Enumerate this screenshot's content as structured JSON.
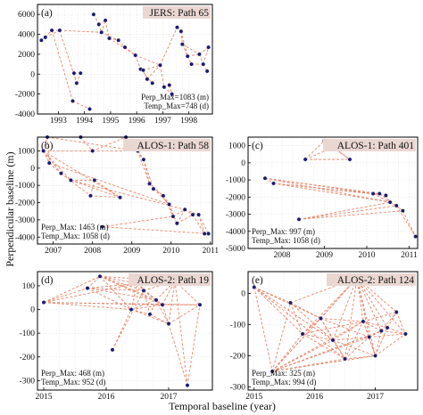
{
  "colors": {
    "point": "#1a1a6e",
    "edge": "#e8866a",
    "title_bg": "#ead7d2",
    "grid": "#dddddd"
  },
  "labels": {
    "y_axis": "Perpendicular baseline (m)",
    "x_axis": "Temporal baseline (year)"
  },
  "chart_data": [
    {
      "id": "a",
      "type": "scatter",
      "panel_label": "(a)",
      "title": "JERS: Path 65",
      "xlim": [
        1992.2,
        1998.9
      ],
      "ylim": [
        -4000,
        7000
      ],
      "xticks": [
        1993,
        1994,
        1995,
        1996,
        1997,
        1998
      ],
      "yticks": [
        -4000,
        -2000,
        0,
        2000,
        4000,
        6000
      ],
      "notes": [
        "Perp_Max=1083 (m)",
        "Temp_Max=748 (d)"
      ],
      "points": [
        [
          1992.35,
          3400
        ],
        [
          1992.5,
          3700
        ],
        [
          1992.75,
          4400
        ],
        [
          1993.05,
          4400
        ],
        [
          1993.55,
          -2700
        ],
        [
          1993.6,
          100
        ],
        [
          1993.7,
          -900
        ],
        [
          1993.85,
          100
        ],
        [
          1994.2,
          -3500
        ],
        [
          1994.35,
          6000
        ],
        [
          1994.55,
          5000
        ],
        [
          1994.65,
          4200
        ],
        [
          1994.8,
          5400
        ],
        [
          1994.95,
          3600
        ],
        [
          1995.3,
          3400
        ],
        [
          1995.55,
          2700
        ],
        [
          1995.95,
          1900
        ],
        [
          1996.15,
          500
        ],
        [
          1996.25,
          400
        ],
        [
          1996.4,
          -500
        ],
        [
          1996.6,
          -900
        ],
        [
          1996.9,
          900
        ],
        [
          1997.05,
          -1300
        ],
        [
          1997.25,
          -1100
        ],
        [
          1997.35,
          -2000
        ],
        [
          1997.55,
          4700
        ],
        [
          1997.7,
          4300
        ],
        [
          1997.75,
          3000
        ],
        [
          1997.95,
          1800
        ],
        [
          1998.1,
          1000
        ],
        [
          1998.4,
          2000
        ],
        [
          1998.55,
          1000
        ],
        [
          1998.7,
          300
        ],
        [
          1998.75,
          2700
        ]
      ],
      "edges": [
        [
          0,
          1
        ],
        [
          1,
          2
        ],
        [
          2,
          3
        ],
        [
          1,
          3
        ],
        [
          2,
          4
        ],
        [
          3,
          6
        ],
        [
          5,
          6
        ],
        [
          5,
          7
        ],
        [
          6,
          7
        ],
        [
          4,
          8
        ],
        [
          3,
          11
        ],
        [
          9,
          10
        ],
        [
          10,
          11
        ],
        [
          11,
          12
        ],
        [
          12,
          13
        ],
        [
          10,
          12
        ],
        [
          11,
          14
        ],
        [
          13,
          14
        ],
        [
          14,
          15
        ],
        [
          15,
          16
        ],
        [
          13,
          16
        ],
        [
          16,
          17
        ],
        [
          17,
          18
        ],
        [
          18,
          19
        ],
        [
          17,
          20
        ],
        [
          19,
          21
        ],
        [
          18,
          21
        ],
        [
          21,
          22
        ],
        [
          22,
          23
        ],
        [
          23,
          24
        ],
        [
          22,
          24
        ],
        [
          21,
          25
        ],
        [
          25,
          26
        ],
        [
          26,
          27
        ],
        [
          27,
          28
        ],
        [
          26,
          28
        ],
        [
          28,
          29
        ],
        [
          27,
          30
        ],
        [
          28,
          30
        ],
        [
          29,
          31
        ],
        [
          30,
          31
        ],
        [
          31,
          32
        ],
        [
          31,
          33
        ],
        [
          30,
          33
        ],
        [
          16,
          21
        ]
      ]
    },
    {
      "id": "b",
      "type": "scatter",
      "panel_label": "(b)",
      "title": "ALOS-1: Path 58",
      "xlim": [
        2006.6,
        2011.05
      ],
      "ylim": [
        -4400,
        1800
      ],
      "xticks": [
        2007,
        2008,
        2009,
        2010,
        2011
      ],
      "yticks": [
        -4000,
        -3000,
        -2000,
        -1000,
        0,
        1000
      ],
      "notes": [
        "Perp_Max: 1463 (m)",
        "Temp_Max: 1058 (d)"
      ],
      "points": [
        [
          2006.75,
          1000
        ],
        [
          2006.85,
          1800
        ],
        [
          2006.9,
          300
        ],
        [
          2007.2,
          -300
        ],
        [
          2007.45,
          -700
        ],
        [
          2007.7,
          1800
        ],
        [
          2007.95,
          -1600
        ],
        [
          2008.0,
          1000
        ],
        [
          2008.05,
          -700
        ],
        [
          2008.25,
          -3400
        ],
        [
          2008.7,
          -1700
        ],
        [
          2008.85,
          1800
        ],
        [
          2009.15,
          1000
        ],
        [
          2009.3,
          500
        ],
        [
          2009.45,
          -900
        ],
        [
          2009.55,
          -1200
        ],
        [
          2009.8,
          -1600
        ],
        [
          2009.95,
          -2100
        ],
        [
          2010.05,
          -2800
        ],
        [
          2010.15,
          -3200
        ],
        [
          2010.35,
          -2400
        ],
        [
          2010.55,
          -2700
        ],
        [
          2010.7,
          -2700
        ],
        [
          2010.85,
          -3800
        ],
        [
          2010.95,
          -3800
        ]
      ],
      "edges": [
        [
          0,
          1
        ],
        [
          0,
          2
        ],
        [
          1,
          2
        ],
        [
          0,
          3
        ],
        [
          2,
          3
        ],
        [
          0,
          4
        ],
        [
          3,
          4
        ],
        [
          1,
          5
        ],
        [
          0,
          7
        ],
        [
          5,
          7
        ],
        [
          4,
          8
        ],
        [
          3,
          6
        ],
        [
          6,
          8
        ],
        [
          4,
          10
        ],
        [
          6,
          10
        ],
        [
          8,
          10
        ],
        [
          7,
          11
        ],
        [
          5,
          11
        ],
        [
          11,
          12
        ],
        [
          7,
          12
        ],
        [
          12,
          13
        ],
        [
          11,
          13
        ],
        [
          13,
          14
        ],
        [
          12,
          14
        ],
        [
          14,
          15
        ],
        [
          13,
          15
        ],
        [
          15,
          16
        ],
        [
          14,
          16
        ],
        [
          16,
          17
        ],
        [
          15,
          17
        ],
        [
          17,
          18
        ],
        [
          16,
          18
        ],
        [
          18,
          19
        ],
        [
          17,
          19
        ],
        [
          19,
          20
        ],
        [
          18,
          20
        ],
        [
          20,
          21
        ],
        [
          19,
          21
        ],
        [
          21,
          22
        ],
        [
          20,
          22
        ],
        [
          22,
          23
        ],
        [
          21,
          23
        ],
        [
          23,
          24
        ],
        [
          22,
          24
        ],
        [
          9,
          18
        ],
        [
          9,
          24
        ],
        [
          0,
          10
        ],
        [
          2,
          17
        ],
        [
          4,
          20
        ],
        [
          1,
          12
        ]
      ]
    },
    {
      "id": "c",
      "type": "scatter",
      "panel_label": "(c)",
      "title": "ALOS-1: Path 401",
      "xlim": [
        2007.2,
        2011.2
      ],
      "ylim": [
        -5000,
        1500
      ],
      "xticks": [
        2008,
        2009,
        2010,
        2011
      ],
      "yticks": [
        -5000,
        -4000,
        -3000,
        -2000,
        -1000,
        0,
        1000
      ],
      "notes": [
        "Perp_Max: 997 (m)",
        "Temp_Max: 1058 (d)"
      ],
      "points": [
        [
          2008.55,
          200
        ],
        [
          2009.0,
          1300
        ],
        [
          2009.2,
          900
        ],
        [
          2009.6,
          200
        ],
        [
          2007.6,
          -900
        ],
        [
          2007.8,
          -1200
        ],
        [
          2008.4,
          -3300
        ],
        [
          2010.15,
          -1800
        ],
        [
          2010.3,
          -1800
        ],
        [
          2010.45,
          -1900
        ],
        [
          2010.55,
          -2300
        ],
        [
          2010.7,
          -2500
        ],
        [
          2010.85,
          -2800
        ],
        [
          2011.15,
          -4300
        ]
      ],
      "edges": [
        [
          0,
          1
        ],
        [
          0,
          2
        ],
        [
          1,
          2
        ],
        [
          0,
          3
        ],
        [
          1,
          3
        ],
        [
          2,
          3
        ],
        [
          4,
          5
        ],
        [
          4,
          7
        ],
        [
          5,
          7
        ],
        [
          4,
          8
        ],
        [
          5,
          9
        ],
        [
          4,
          10
        ],
        [
          5,
          10
        ],
        [
          6,
          10
        ],
        [
          6,
          11
        ],
        [
          6,
          12
        ],
        [
          7,
          8
        ],
        [
          8,
          9
        ],
        [
          9,
          10
        ],
        [
          10,
          11
        ],
        [
          11,
          12
        ],
        [
          7,
          11
        ],
        [
          8,
          12
        ],
        [
          12,
          13
        ],
        [
          11,
          13
        ]
      ]
    },
    {
      "id": "d",
      "type": "scatter",
      "panel_label": "(d)",
      "title": "ALOS-2: Path 19",
      "xlim": [
        2014.9,
        2017.7
      ],
      "ylim": [
        -340,
        160
      ],
      "xticks": [
        2015,
        2016,
        2017
      ],
      "yticks": [
        -300,
        -200,
        -100,
        0,
        100
      ],
      "notes": [
        "Perp_Max: 468 (m)",
        "Temp_Max: 952 (d)"
      ],
      "points": [
        [
          2015.0,
          30
        ],
        [
          2015.7,
          90
        ],
        [
          2015.9,
          140
        ],
        [
          2016.1,
          -170
        ],
        [
          2016.4,
          0
        ],
        [
          2016.5,
          110
        ],
        [
          2016.6,
          80
        ],
        [
          2016.7,
          -20
        ],
        [
          2016.8,
          40
        ],
        [
          2016.9,
          20
        ],
        [
          2017.0,
          -60
        ],
        [
          2017.1,
          120
        ],
        [
          2017.3,
          -320
        ],
        [
          2017.5,
          20
        ]
      ],
      "edges": [
        [
          0,
          1
        ],
        [
          0,
          2
        ],
        [
          0,
          4
        ],
        [
          0,
          5
        ],
        [
          0,
          9
        ],
        [
          0,
          13
        ],
        [
          1,
          2
        ],
        [
          1,
          4
        ],
        [
          1,
          5
        ],
        [
          1,
          6
        ],
        [
          2,
          4
        ],
        [
          2,
          5
        ],
        [
          2,
          6
        ],
        [
          2,
          8
        ],
        [
          2,
          9
        ],
        [
          3,
          4
        ],
        [
          3,
          6
        ],
        [
          4,
          5
        ],
        [
          4,
          7
        ],
        [
          4,
          8
        ],
        [
          4,
          9
        ],
        [
          5,
          6
        ],
        [
          5,
          8
        ],
        [
          5,
          11
        ],
        [
          6,
          7
        ],
        [
          6,
          8
        ],
        [
          6,
          9
        ],
        [
          6,
          11
        ],
        [
          7,
          8
        ],
        [
          7,
          10
        ],
        [
          8,
          9
        ],
        [
          8,
          10
        ],
        [
          8,
          11
        ],
        [
          9,
          10
        ],
        [
          9,
          11
        ],
        [
          9,
          13
        ],
        [
          10,
          11
        ],
        [
          10,
          12
        ],
        [
          10,
          13
        ],
        [
          11,
          12
        ],
        [
          11,
          13
        ],
        [
          12,
          13
        ],
        [
          1,
          8
        ],
        [
          2,
          11
        ],
        [
          4,
          10
        ]
      ]
    },
    {
      "id": "e",
      "type": "scatter",
      "panel_label": "(e)",
      "title": "ALOS-2: Path 124",
      "xlim": [
        2014.9,
        2017.7
      ],
      "ylim": [
        -310,
        70
      ],
      "xticks": [
        2015,
        2016,
        2017
      ],
      "yticks": [
        -300,
        -200,
        -100,
        0
      ],
      "notes": [
        "Perp_Max: 325 (m)",
        "Temp_Max: 994 (d)"
      ],
      "points": [
        [
          2015.0,
          20
        ],
        [
          2015.3,
          -250
        ],
        [
          2015.6,
          -30
        ],
        [
          2015.8,
          -130
        ],
        [
          2016.1,
          -80
        ],
        [
          2016.3,
          -150
        ],
        [
          2016.5,
          -210
        ],
        [
          2016.7,
          50
        ],
        [
          2016.8,
          -90
        ],
        [
          2016.9,
          -140
        ],
        [
          2017.0,
          -200
        ],
        [
          2017.1,
          -120
        ],
        [
          2017.2,
          -110
        ],
        [
          2017.35,
          -60
        ],
        [
          2017.5,
          -130
        ]
      ],
      "edges": [
        [
          0,
          1
        ],
        [
          0,
          2
        ],
        [
          0,
          3
        ],
        [
          0,
          4
        ],
        [
          0,
          5
        ],
        [
          0,
          6
        ],
        [
          1,
          2
        ],
        [
          1,
          3
        ],
        [
          1,
          4
        ],
        [
          1,
          5
        ],
        [
          1,
          6
        ],
        [
          1,
          7
        ],
        [
          1,
          8
        ],
        [
          1,
          9
        ],
        [
          1,
          10
        ],
        [
          1,
          11
        ],
        [
          2,
          3
        ],
        [
          2,
          4
        ],
        [
          2,
          5
        ],
        [
          2,
          7
        ],
        [
          3,
          4
        ],
        [
          3,
          5
        ],
        [
          3,
          6
        ],
        [
          3,
          7
        ],
        [
          3,
          8
        ],
        [
          4,
          5
        ],
        [
          4,
          6
        ],
        [
          4,
          7
        ],
        [
          4,
          8
        ],
        [
          4,
          9
        ],
        [
          5,
          6
        ],
        [
          5,
          7
        ],
        [
          5,
          8
        ],
        [
          5,
          9
        ],
        [
          5,
          10
        ],
        [
          6,
          7
        ],
        [
          6,
          8
        ],
        [
          6,
          9
        ],
        [
          6,
          10
        ],
        [
          7,
          8
        ],
        [
          7,
          9
        ],
        [
          7,
          10
        ],
        [
          7,
          11
        ],
        [
          7,
          12
        ],
        [
          7,
          13
        ],
        [
          7,
          14
        ],
        [
          8,
          9
        ],
        [
          8,
          10
        ],
        [
          8,
          11
        ],
        [
          8,
          12
        ],
        [
          8,
          13
        ],
        [
          9,
          10
        ],
        [
          9,
          11
        ],
        [
          9,
          12
        ],
        [
          9,
          14
        ],
        [
          10,
          11
        ],
        [
          10,
          12
        ],
        [
          10,
          14
        ],
        [
          11,
          12
        ],
        [
          11,
          13
        ],
        [
          11,
          14
        ],
        [
          12,
          13
        ],
        [
          12,
          14
        ],
        [
          13,
          14
        ]
      ]
    }
  ]
}
